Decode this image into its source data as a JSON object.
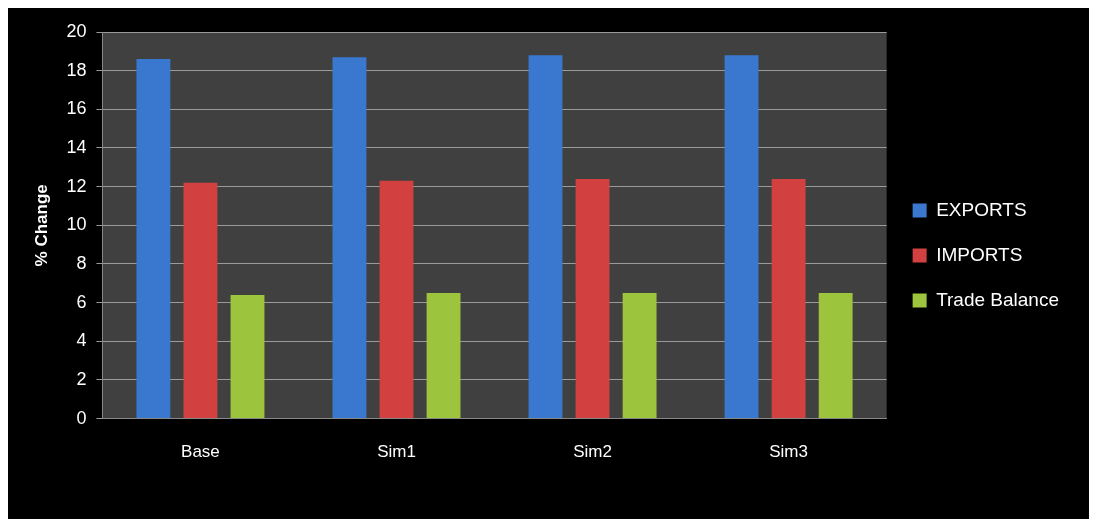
{
  "chart_data": {
    "type": "bar",
    "ylabel": "% Change",
    "categories": [
      "Base",
      "Sim1",
      "Sim2",
      "Sim3"
    ],
    "series": [
      {
        "name": "EXPORTS",
        "color": "#3a78d0",
        "values": [
          18.6,
          18.7,
          18.8,
          18.8
        ]
      },
      {
        "name": "IMPORTS",
        "color": "#d24040",
        "values": [
          12.2,
          12.3,
          12.4,
          12.4
        ]
      },
      {
        "name": "Trade Balance",
        "color": "#9cc43c",
        "values": [
          6.4,
          6.5,
          6.5,
          6.5
        ]
      }
    ],
    "ylim": [
      0,
      20
    ],
    "yticks": [
      0,
      2,
      4,
      6,
      8,
      10,
      12,
      14,
      16,
      18,
      20
    ],
    "grid": "y",
    "legend": "right"
  }
}
